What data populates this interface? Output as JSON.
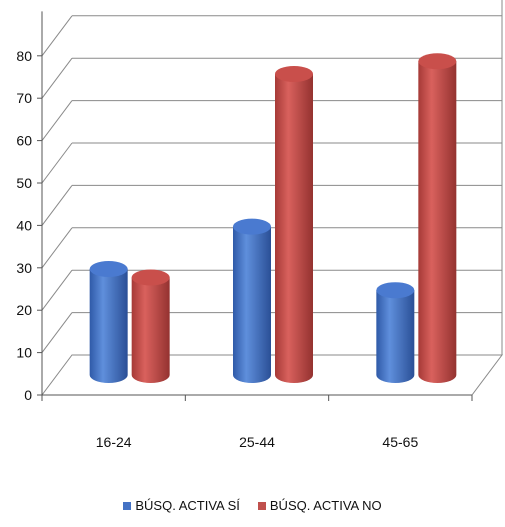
{
  "chart_data": {
    "type": "bar",
    "categories": [
      "16-24",
      "25-44",
      "45-65"
    ],
    "series": [
      {
        "name": "BÚSQ. ACTIVA SÍ",
        "values": [
          25,
          35,
          20
        ],
        "color": "#4472C4"
      },
      {
        "name": "BÚSQ. ACTIVA NO",
        "values": [
          23,
          71,
          74
        ],
        "color": "#C0504D"
      }
    ],
    "yticks": [
      "0",
      "10",
      "20",
      "30",
      "40",
      "50",
      "60",
      "70",
      "80"
    ],
    "ylim": [
      0,
      90
    ],
    "grid": true,
    "legend_position": "bottom",
    "three_d": true
  }
}
